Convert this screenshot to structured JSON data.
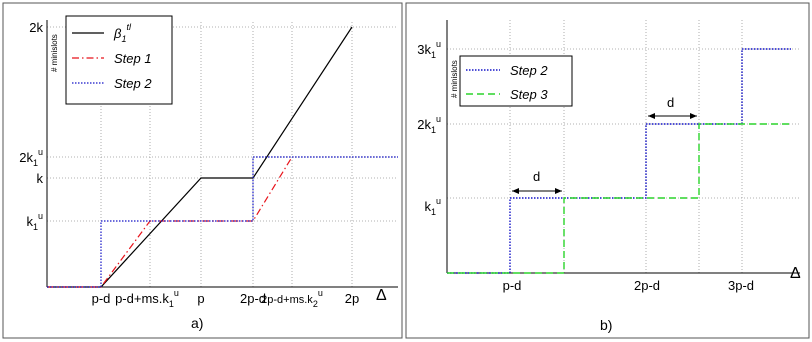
{
  "chart_data": [
    {
      "type": "line",
      "panel_label": "a)",
      "ylabel": "# minislots",
      "xlabel_symbol": "Δ",
      "x_ticks": [
        "p-d",
        "p-d+ms.k",
        "p",
        "2p-d",
        "2p-d+ms.k",
        "2p"
      ],
      "x_tick_sup": [
        "",
        "1",
        "",
        "",
        "2",
        ""
      ],
      "x_tick_suffix": [
        "",
        "u",
        "",
        "",
        "u",
        ""
      ],
      "y_ticks": [
        {
          "label": "2k",
          "sub": "",
          "sup": ""
        },
        {
          "label": "2k",
          "sub": "1",
          "sup": "u"
        },
        {
          "label": "k",
          "sub": "",
          "sup": ""
        },
        {
          "label": "k",
          "sub": "1",
          "sup": "u"
        }
      ],
      "legend": [
        {
          "label": "β",
          "sub": "1",
          "sup": "tl",
          "color": "#000000",
          "dash": "solid"
        },
        {
          "label": "Step 1",
          "sub": "",
          "sup": "",
          "color": "#e8131b",
          "dash": "dashdot"
        },
        {
          "label": "Step 2",
          "sub": "",
          "sup": "",
          "color": "#1414c8",
          "dash": "dotted"
        }
      ],
      "series": [
        {
          "name": "β1^tl",
          "color": "#000000",
          "dash": "solid",
          "points": [
            [
              "origin",
              "0"
            ],
            [
              "p-d",
              "0"
            ],
            [
              "p",
              "k"
            ],
            [
              "2p-d",
              "k"
            ],
            [
              "2p",
              "2k"
            ]
          ]
        },
        {
          "name": "Step 1",
          "color": "#e8131b",
          "dash": "dashdot",
          "points": [
            [
              "origin",
              "0"
            ],
            [
              "p-d",
              "0"
            ],
            [
              "p-d+ms.k1u",
              "k1u"
            ],
            [
              "2p-d",
              "k1u"
            ],
            [
              "2p-d+ms.k2u",
              "2k1u"
            ]
          ]
        },
        {
          "name": "Step 2",
          "color": "#1414c8",
          "dash": "dotted",
          "points": [
            [
              "origin",
              "0"
            ],
            [
              "p-d",
              "0"
            ],
            [
              "p-d",
              "k1u"
            ],
            [
              "2p-d",
              "k1u"
            ],
            [
              "2p-d",
              "2k1u"
            ],
            [
              "end",
              "2k1u"
            ]
          ]
        }
      ]
    },
    {
      "type": "line",
      "panel_label": "b)",
      "ylabel": "# minislots",
      "xlabel_symbol": "Δ",
      "x_ticks": [
        "p-d",
        "2p-d",
        "3p-d"
      ],
      "y_ticks": [
        {
          "label": "3k",
          "sub": "1",
          "sup": "u"
        },
        {
          "label": "2k",
          "sub": "1",
          "sup": "u"
        },
        {
          "label": "k",
          "sub": "1",
          "sup": "u"
        }
      ],
      "annotations": [
        "d",
        "d"
      ],
      "legend": [
        {
          "label": "Step 2",
          "color": "#1414c8",
          "dash": "dotted"
        },
        {
          "label": "Step 3",
          "color": "#2bd42b",
          "dash": "dashed"
        }
      ],
      "series": [
        {
          "name": "Step 2",
          "color": "#1414c8",
          "dash": "dotted",
          "points": [
            [
              "origin",
              "0"
            ],
            [
              "p-d",
              "0"
            ],
            [
              "p-d",
              "k1u"
            ],
            [
              "2p-d",
              "k1u"
            ],
            [
              "2p-d",
              "2k1u"
            ],
            [
              "3p-d",
              "2k1u"
            ],
            [
              "3p-d",
              "3k1u"
            ],
            [
              "end",
              "3k1u"
            ]
          ]
        },
        {
          "name": "Step 3",
          "color": "#2bd42b",
          "dash": "dashed",
          "points": [
            [
              "origin",
              "0"
            ],
            [
              "p",
              "0"
            ],
            [
              "p",
              "k1u"
            ],
            [
              "2p",
              "k1u"
            ],
            [
              "2p",
              "2k1u"
            ],
            [
              "end",
              "2k1u"
            ]
          ]
        }
      ]
    }
  ]
}
